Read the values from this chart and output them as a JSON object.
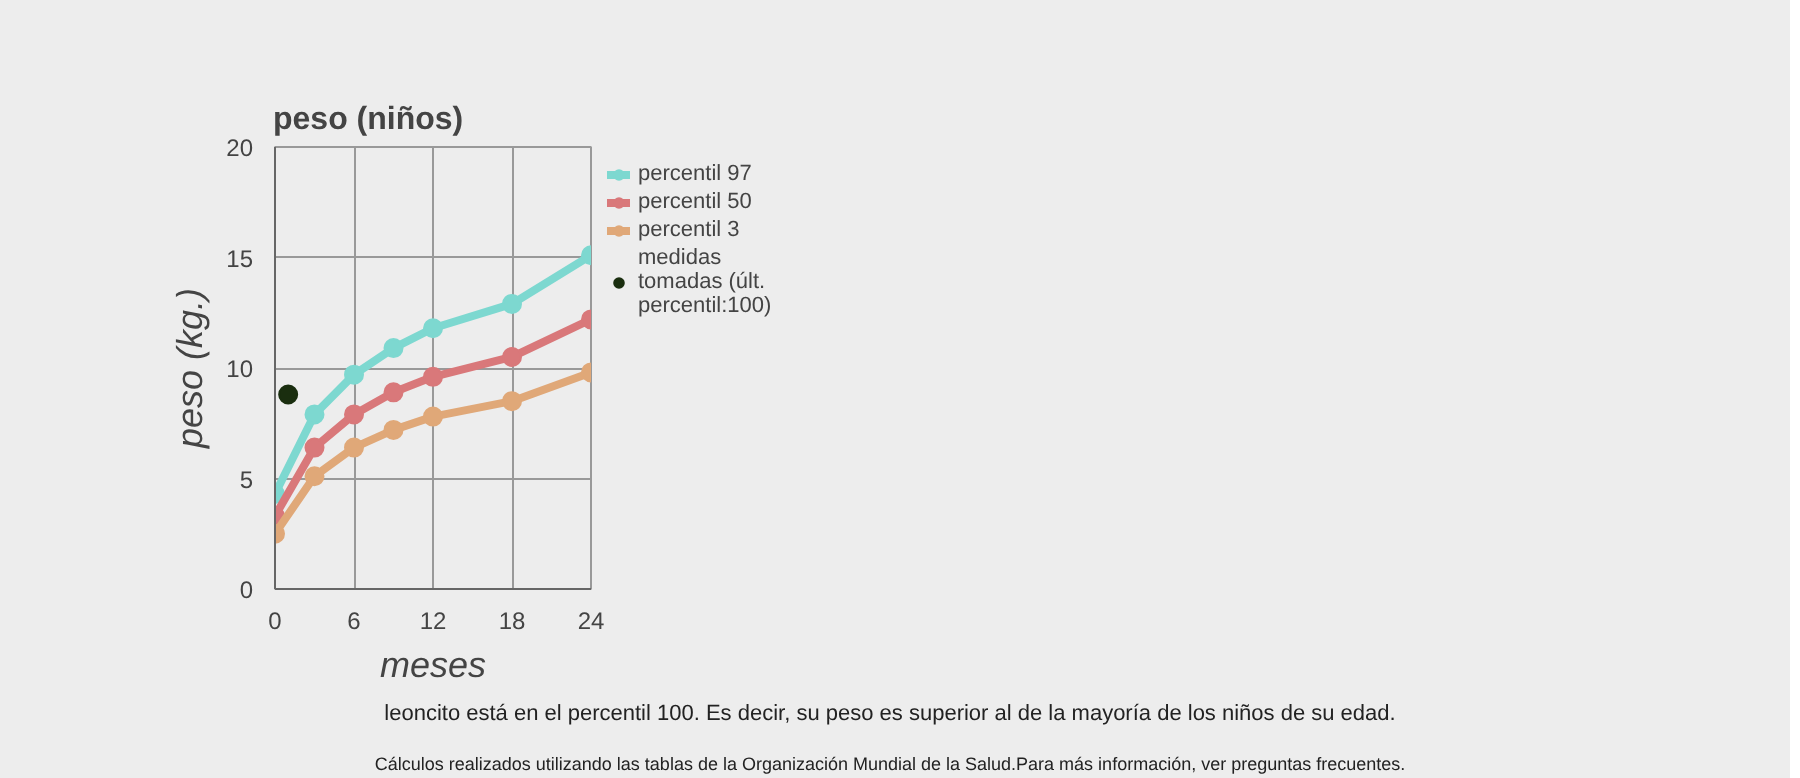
{
  "chart_data": {
    "type": "line",
    "title": "peso (niños)",
    "xlabel": "meses",
    "ylabel": "peso (kg.)",
    "x": [
      0,
      3,
      6,
      9,
      12,
      18,
      24
    ],
    "series": [
      {
        "name": "percentil 97",
        "color": "#7dd8d0",
        "values": [
          4.3,
          7.9,
          9.7,
          10.9,
          11.8,
          12.9,
          15.1
        ]
      },
      {
        "name": "percentil 50",
        "color": "#d9787a",
        "values": [
          3.3,
          6.4,
          7.9,
          8.9,
          9.6,
          10.5,
          12.2
        ]
      },
      {
        "name": "percentil 3",
        "color": "#e0a878",
        "values": [
          2.5,
          5.1,
          6.4,
          7.2,
          7.8,
          8.5,
          9.8
        ]
      },
      {
        "name": "medidas tomadas (últ. percentil:100)",
        "color": "#1a2e0f",
        "type": "scatter",
        "x": [
          1
        ],
        "values": [
          8.8
        ]
      }
    ],
    "xlim": [
      0,
      24
    ],
    "ylim": [
      0,
      20
    ],
    "xticks": [
      0,
      6,
      12,
      18,
      24
    ],
    "yticks": [
      0,
      5,
      10,
      15,
      20
    ],
    "grid": true,
    "legend": "right",
    "marker": "circle",
    "line_style": "solid",
    "annotations": [
      "leoncito está en el percentil 100. Es decir, su peso es superior al de la mayoría de los niños de su edad.",
      "Cálculos realizados utilizando las tablas de la Organización Mundial de la Salud.Para más información, ver preguntas frecuentes."
    ]
  }
}
